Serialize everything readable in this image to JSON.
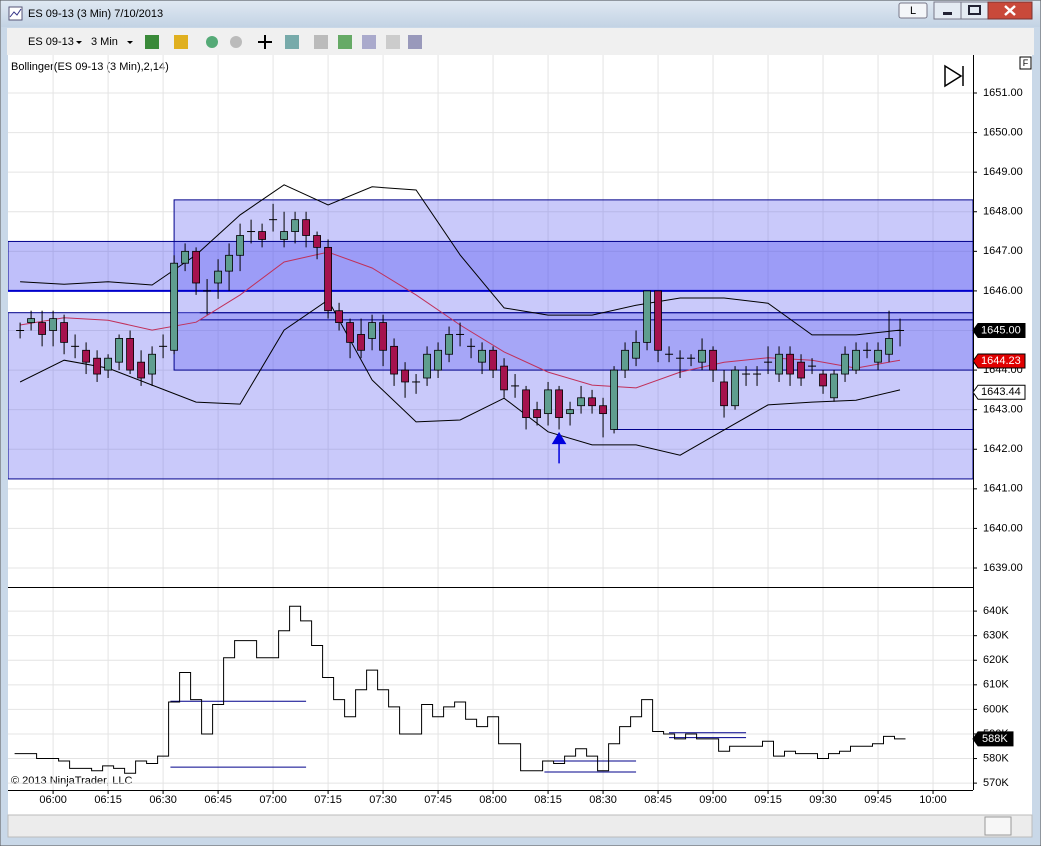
{
  "window": {
    "title": "ES 09-13 (3 Min)  7/10/2013",
    "instrument": "ES 09-13",
    "interval": "3 Min",
    "link_button": "L",
    "f_button": "F",
    "footer": "© 2013 NinjaTrader, LLC"
  },
  "chart_data": [
    {
      "type": "candlestick",
      "indicator_label": "Bollinger(ES 09-13 (3 Min),2,14)",
      "x": [
        351,
        354,
        357,
        360,
        363,
        366,
        369,
        372,
        375,
        378,
        381,
        384,
        387,
        390,
        393,
        396,
        399,
        402,
        405,
        408,
        411,
        414,
        417,
        420,
        423,
        426,
        429,
        432,
        435,
        438,
        441,
        444,
        447,
        450,
        453,
        456,
        459,
        462,
        465,
        468,
        471,
        474,
        477,
        480,
        483,
        486,
        489,
        492,
        495,
        498,
        501,
        504,
        507,
        510,
        513,
        516,
        519,
        522,
        525,
        528,
        531,
        534,
        537,
        540,
        543,
        546,
        549,
        552,
        555,
        558,
        561,
        564,
        567,
        570,
        573,
        576,
        579,
        582,
        585,
        588,
        591
      ],
      "ohlc": [
        [
          1645.0,
          1645.2,
          1644.8,
          1645.0
        ],
        [
          1645.2,
          1645.5,
          1645.0,
          1645.3
        ],
        [
          1645.2,
          1645.5,
          1644.6,
          1644.9
        ],
        [
          1645.0,
          1645.5,
          1644.6,
          1645.3
        ],
        [
          1645.2,
          1645.4,
          1644.4,
          1644.7
        ],
        [
          1644.6,
          1644.9,
          1644.3,
          1644.6
        ],
        [
          1644.5,
          1644.7,
          1643.9,
          1644.2
        ],
        [
          1644.3,
          1644.5,
          1643.7,
          1643.9
        ],
        [
          1644.0,
          1644.4,
          1643.8,
          1644.3
        ],
        [
          1644.2,
          1644.9,
          1644.0,
          1644.8
        ],
        [
          1644.8,
          1645.0,
          1643.9,
          1644.0
        ],
        [
          1644.2,
          1644.5,
          1643.6,
          1643.8
        ],
        [
          1643.9,
          1644.6,
          1643.6,
          1644.4
        ],
        [
          1644.6,
          1644.9,
          1644.3,
          1644.6
        ],
        [
          1644.5,
          1646.9,
          1644.4,
          1646.7
        ],
        [
          1646.7,
          1647.2,
          1646.5,
          1647.0
        ],
        [
          1647.0,
          1647.1,
          1645.9,
          1646.2
        ],
        [
          1646.0,
          1646.3,
          1645.4,
          1646.0
        ],
        [
          1646.2,
          1646.8,
          1645.8,
          1646.5
        ],
        [
          1646.5,
          1647.2,
          1646.0,
          1646.9
        ],
        [
          1646.9,
          1647.7,
          1646.5,
          1647.4
        ],
        [
          1647.5,
          1647.8,
          1647.2,
          1647.5
        ],
        [
          1647.5,
          1647.7,
          1647.1,
          1647.3
        ],
        [
          1647.8,
          1648.2,
          1647.5,
          1647.8
        ],
        [
          1647.3,
          1648.0,
          1647.1,
          1647.5
        ],
        [
          1647.5,
          1648.0,
          1647.2,
          1647.8
        ],
        [
          1647.8,
          1648.0,
          1647.1,
          1647.4
        ],
        [
          1647.4,
          1647.5,
          1646.8,
          1647.1
        ],
        [
          1647.1,
          1647.3,
          1645.3,
          1645.5
        ],
        [
          1645.5,
          1645.7,
          1645.0,
          1645.2
        ],
        [
          1645.2,
          1645.3,
          1644.3,
          1644.7
        ],
        [
          1644.9,
          1645.3,
          1644.3,
          1644.5
        ],
        [
          1644.8,
          1645.4,
          1644.5,
          1645.2
        ],
        [
          1645.2,
          1645.4,
          1644.1,
          1644.5
        ],
        [
          1644.6,
          1644.8,
          1643.6,
          1643.9
        ],
        [
          1644.0,
          1644.2,
          1643.3,
          1643.7
        ],
        [
          1643.7,
          1643.9,
          1643.4,
          1643.7
        ],
        [
          1643.8,
          1644.6,
          1643.6,
          1644.4
        ],
        [
          1644.0,
          1644.7,
          1643.8,
          1644.5
        ],
        [
          1644.4,
          1645.1,
          1644.2,
          1644.9
        ],
        [
          1644.9,
          1645.2,
          1644.6,
          1644.9
        ],
        [
          1644.6,
          1644.8,
          1644.3,
          1644.6
        ],
        [
          1644.2,
          1644.7,
          1643.9,
          1644.5
        ],
        [
          1644.5,
          1644.6,
          1643.8,
          1644.0
        ],
        [
          1644.1,
          1644.3,
          1643.3,
          1643.5
        ],
        [
          1643.6,
          1643.9,
          1643.3,
          1643.6
        ],
        [
          1643.5,
          1643.6,
          1642.5,
          1642.8
        ],
        [
          1643.0,
          1643.2,
          1642.6,
          1642.8
        ],
        [
          1642.9,
          1643.7,
          1642.6,
          1643.5
        ],
        [
          1643.5,
          1643.6,
          1642.5,
          1642.8
        ],
        [
          1642.9,
          1643.2,
          1642.6,
          1643.0
        ],
        [
          1643.1,
          1643.6,
          1642.9,
          1643.3
        ],
        [
          1643.3,
          1643.5,
          1642.9,
          1643.1
        ],
        [
          1643.1,
          1643.3,
          1642.3,
          1642.9
        ],
        [
          1642.5,
          1644.1,
          1642.4,
          1644.0
        ],
        [
          1644.0,
          1644.7,
          1643.8,
          1644.5
        ],
        [
          1644.3,
          1645.0,
          1644.1,
          1644.7
        ],
        [
          1644.7,
          1646.0,
          1644.5,
          1646.0
        ],
        [
          1646.0,
          1646.0,
          1644.2,
          1644.5
        ],
        [
          1644.4,
          1644.6,
          1644.2,
          1644.4
        ],
        [
          1644.3,
          1644.5,
          1643.8,
          1644.3
        ],
        [
          1644.3,
          1644.4,
          1644.1,
          1644.3
        ],
        [
          1644.2,
          1644.8,
          1644.0,
          1644.5
        ],
        [
          1644.5,
          1644.6,
          1643.7,
          1644.0
        ],
        [
          1643.7,
          1644.0,
          1642.8,
          1643.1
        ],
        [
          1643.1,
          1644.1,
          1643.0,
          1644.0
        ],
        [
          1643.9,
          1644.1,
          1643.6,
          1643.9
        ],
        [
          1643.9,
          1644.1,
          1643.6,
          1643.9
        ],
        [
          1644.2,
          1644.6,
          1643.9,
          1644.2
        ],
        [
          1643.9,
          1644.6,
          1643.7,
          1644.4
        ],
        [
          1644.4,
          1644.6,
          1643.6,
          1643.9
        ],
        [
          1644.2,
          1644.4,
          1643.6,
          1643.8
        ],
        [
          1644.1,
          1644.3,
          1643.9,
          1644.1
        ],
        [
          1643.9,
          1644.0,
          1643.4,
          1643.6
        ],
        [
          1643.3,
          1644.0,
          1643.2,
          1643.9
        ],
        [
          1643.9,
          1644.6,
          1643.7,
          1644.4
        ],
        [
          1644.0,
          1644.7,
          1643.9,
          1644.5
        ],
        [
          1644.5,
          1644.7,
          1644.3,
          1644.5
        ],
        [
          1644.2,
          1644.7,
          1644.0,
          1644.5
        ],
        [
          1644.4,
          1645.5,
          1644.2,
          1644.8
        ],
        [
          1645.0,
          1645.3,
          1644.6,
          1645.0
        ]
      ],
      "up_color": "#5f9e8f",
      "down_color": "#a5124d",
      "xlim": [
        347.7,
        610.9
      ],
      "ylim": [
        1638.52,
        1651.96
      ],
      "yticks": [
        {
          "value": 1639,
          "label": "1639.00"
        },
        {
          "value": 1640,
          "label": "1640.00"
        },
        {
          "value": 1641,
          "label": "1641.00"
        },
        {
          "value": 1642,
          "label": "1642.00"
        },
        {
          "value": 1643,
          "label": "1643.00"
        },
        {
          "value": 1644,
          "label": "1644.00"
        },
        {
          "value": 1645,
          "label": "1645.00"
        },
        {
          "value": 1646,
          "label": "1646.00"
        },
        {
          "value": 1647,
          "label": "1647.00"
        },
        {
          "value": 1648,
          "label": "1648.00"
        },
        {
          "value": 1649,
          "label": "1649.00"
        },
        {
          "value": 1650,
          "label": "1650.00"
        },
        {
          "value": 1651,
          "label": "1651.00"
        }
      ],
      "grid": true,
      "bollinger": {
        "x": [
          351,
          363,
          375,
          387,
          399,
          411,
          423,
          435,
          447,
          459,
          471,
          483,
          495,
          507,
          519,
          531,
          543,
          555,
          567,
          579,
          591
        ],
        "upper": [
          1646.23,
          1646.17,
          1646.23,
          1646.15,
          1646.91,
          1647.92,
          1648.68,
          1648.17,
          1648.63,
          1648.55,
          1646.91,
          1645.57,
          1645.39,
          1645.39,
          1645.64,
          1645.82,
          1645.82,
          1645.69,
          1644.89,
          1644.89,
          1645.01
        ],
        "middle": [
          1645.14,
          1645.32,
          1645.26,
          1645.01,
          1645.21,
          1645.9,
          1646.73,
          1646.98,
          1646.58,
          1645.9,
          1645.14,
          1644.46,
          1643.95,
          1643.62,
          1643.55,
          1643.95,
          1644.2,
          1644.31,
          1644.25,
          1644.05,
          1644.25
        ],
        "lower": [
          1643.7,
          1644.25,
          1644.05,
          1643.62,
          1643.19,
          1643.14,
          1645.01,
          1645.77,
          1643.75,
          1642.69,
          1642.74,
          1643.29,
          1642.44,
          1642.11,
          1642.11,
          1641.85,
          1642.49,
          1643.12,
          1643.19,
          1643.24,
          1643.5
        ],
        "band_color": "#000000",
        "middle_color": "#c0305a"
      },
      "zones": [
        {
          "top": 1645.45,
          "bottom": 1641.25,
          "color": "#6464f0"
        },
        {
          "from": 393,
          "top": 1648.3,
          "bottom": 1644.0,
          "color": "#6464f0"
        },
        {
          "top": 1647.25,
          "bottom": 1646.0,
          "color": "#4848f0"
        }
      ],
      "lines": [
        {
          "value": 1646.0,
          "color": "#0000cc",
          "width": 2
        },
        {
          "from": 400,
          "value": 1645.45,
          "color": "#00008b",
          "width": 1
        },
        {
          "from": 400,
          "value": 1645.27,
          "color": "#00008b",
          "width": 1
        },
        {
          "from": 513,
          "value": 1642.5,
          "color": "#00008b",
          "width": 1
        }
      ],
      "arrow": {
        "x": 498,
        "value": 1642.25,
        "color": "#0000dd"
      },
      "price_markers": [
        {
          "value": 1645.0,
          "label": "1645.00",
          "color": "#000000",
          "text_color": "#ffffff"
        },
        {
          "value": 1644.23,
          "label": "1644.23",
          "color": "#e00000",
          "text_color": "#ffffff"
        },
        {
          "value": 1643.44,
          "label": "1643.44",
          "color": "#ffffff",
          "text_color": "#000000"
        }
      ]
    },
    {
      "type": "step",
      "x": [
        351,
        354,
        357,
        360,
        363,
        366,
        369,
        372,
        375,
        378,
        381,
        384,
        387,
        390,
        393,
        396,
        399,
        402,
        405,
        408,
        411,
        414,
        417,
        420,
        423,
        426,
        429,
        432,
        435,
        438,
        441,
        444,
        447,
        450,
        453,
        456,
        459,
        462,
        465,
        468,
        471,
        474,
        477,
        480,
        483,
        486,
        489,
        492,
        495,
        498,
        501,
        504,
        507,
        510,
        513,
        516,
        519,
        522,
        525,
        528,
        531,
        534,
        537,
        540,
        543,
        546,
        549,
        552,
        555,
        558,
        561,
        564,
        567,
        570,
        573,
        576,
        579,
        582,
        585,
        588,
        591
      ],
      "values": [
        582000,
        582000,
        580000,
        580000,
        579000,
        576000,
        576000,
        575000,
        577000,
        576000,
        574000,
        579000,
        578000,
        581000,
        603000,
        615000,
        604000,
        590000,
        602000,
        621000,
        628000,
        628000,
        621000,
        621000,
        632000,
        642000,
        636000,
        626000,
        613000,
        604000,
        597000,
        608000,
        616000,
        608000,
        601000,
        590000,
        590000,
        602000,
        597000,
        601000,
        603000,
        596000,
        593000,
        597000,
        586000,
        586000,
        575000,
        575000,
        579000,
        578000,
        581000,
        584000,
        581000,
        575000,
        586000,
        593000,
        597000,
        604000,
        591000,
        590000,
        588000,
        590000,
        588000,
        588000,
        583000,
        585000,
        585000,
        585000,
        587000,
        581000,
        583000,
        582000,
        582000,
        580000,
        582000,
        583000,
        585000,
        585000,
        586000,
        589000,
        588000
      ],
      "color": "#000000",
      "xlim": [
        347.7,
        610.9
      ],
      "ylim": [
        567200,
        649400
      ],
      "yticks": [
        {
          "value": 570000,
          "label": "570K"
        },
        {
          "value": 580000,
          "label": "580K"
        },
        {
          "value": 590000,
          "label": "590K"
        },
        {
          "value": 600000,
          "label": "600K"
        },
        {
          "value": 610000,
          "label": "610K"
        },
        {
          "value": 620000,
          "label": "620K"
        },
        {
          "value": 630000,
          "label": "630K"
        },
        {
          "value": 640000,
          "label": "640K"
        }
      ],
      "xticks": [
        {
          "value": 360,
          "label": "06:00"
        },
        {
          "value": 375,
          "label": "06:15"
        },
        {
          "value": 390,
          "label": "06:30"
        },
        {
          "value": 405,
          "label": "06:45"
        },
        {
          "value": 420,
          "label": "07:00"
        },
        {
          "value": 435,
          "label": "07:15"
        },
        {
          "value": 450,
          "label": "07:30"
        },
        {
          "value": 465,
          "label": "07:45"
        },
        {
          "value": 480,
          "label": "08:00"
        },
        {
          "value": 495,
          "label": "08:15"
        },
        {
          "value": 510,
          "label": "08:30"
        },
        {
          "value": 525,
          "label": "08:45"
        },
        {
          "value": 540,
          "label": "09:00"
        },
        {
          "value": 555,
          "label": "09:15"
        },
        {
          "value": 570,
          "label": "09:30"
        },
        {
          "value": 585,
          "label": "09:45"
        },
        {
          "value": 600,
          "label": "10:00"
        }
      ],
      "grid": true,
      "lines": [
        {
          "from": 392,
          "to": 429,
          "value": 603300,
          "color": "#00008b"
        },
        {
          "from": 392,
          "to": 429,
          "value": 576500,
          "color": "#00008b"
        },
        {
          "from": 494,
          "to": 519,
          "value": 579000,
          "color": "#00008b"
        },
        {
          "from": 494,
          "to": 519,
          "value": 574500,
          "color": "#00008b"
        },
        {
          "from": 528,
          "to": 549,
          "value": 590500,
          "color": "#00008b"
        },
        {
          "from": 528,
          "to": 549,
          "value": 588500,
          "color": "#00008b"
        }
      ],
      "marker": {
        "value": 588000,
        "label": "588K",
        "color": "#000000",
        "text_color": "#ffffff"
      }
    }
  ]
}
